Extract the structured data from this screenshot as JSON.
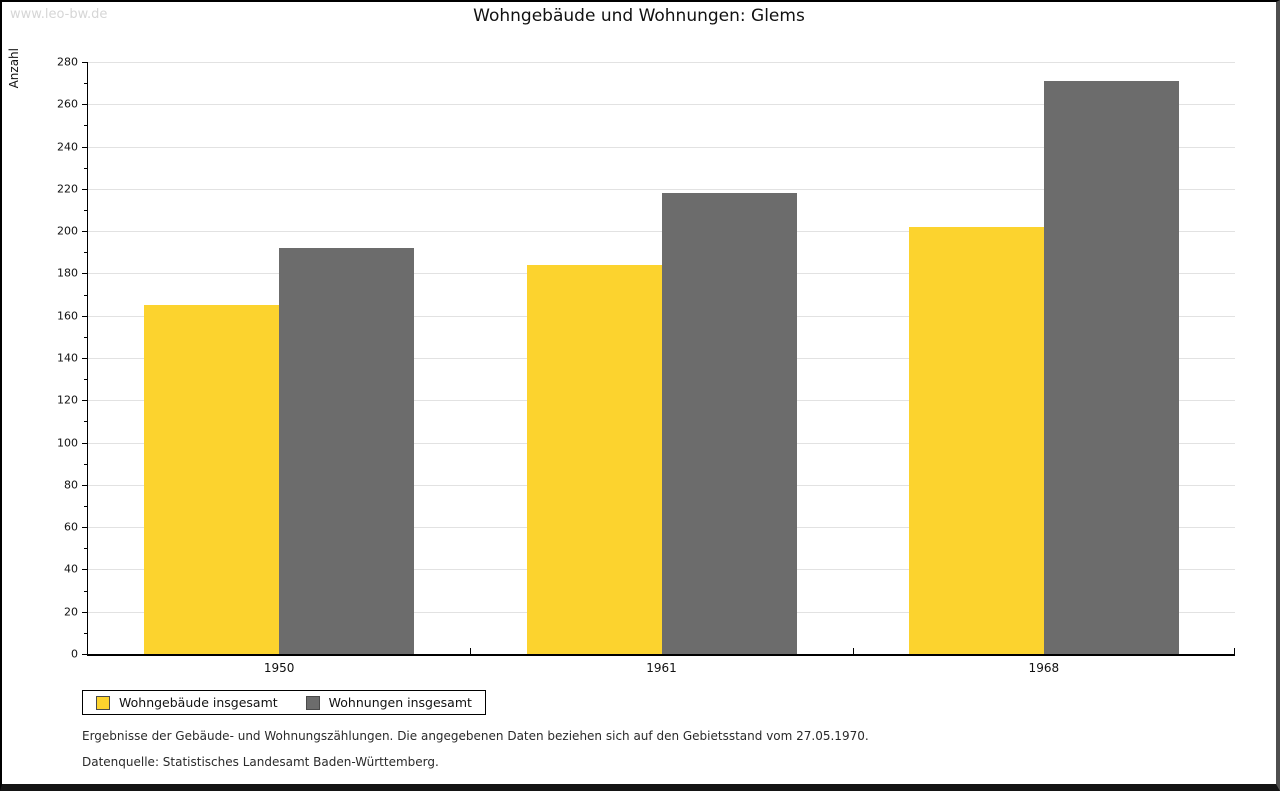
{
  "watermark": "www.leo-bw.de",
  "title": "Wohngebäude und Wohnungen: Glems",
  "chart_data": {
    "type": "bar",
    "title": "Wohngebäude und Wohnungen: Glems",
    "categories": [
      "1950",
      "1961",
      "1968"
    ],
    "series": [
      {
        "name": "Wohngebäude insgesamt",
        "color": "#FCD32E",
        "values": [
          165,
          184,
          202
        ]
      },
      {
        "name": "Wohnungen insgesamt",
        "color": "#6C6C6C",
        "values": [
          192,
          218,
          271
        ]
      }
    ],
    "xlabel": "",
    "ylabel": "Anzahl",
    "ylim": [
      0,
      280
    ],
    "ytick_step": 20,
    "minor_tick_step": 10,
    "grid": true,
    "gridline_color": "#e2e2e2",
    "legend_position": "bottom-left"
  },
  "footnotes": {
    "line1": "Ergebnisse der Gebäude- und Wohnungszählungen. Die angegebenen Daten beziehen sich auf den Gebietsstand vom 27.05.1970.",
    "line2": "Datenquelle: Statistisches Landesamt Baden-Württemberg."
  }
}
